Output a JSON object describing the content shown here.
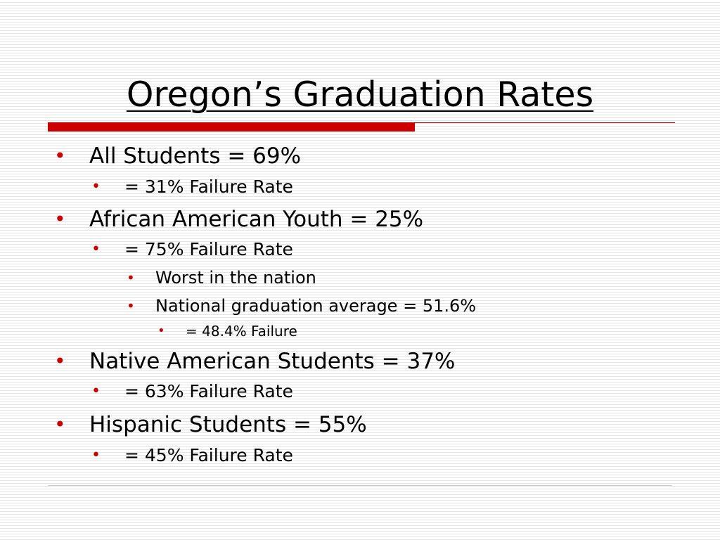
{
  "title": "Oregon’s Graduation Rates",
  "colors": {
    "accent": "#cc0000",
    "rule": "#cccccc",
    "text": "#000000",
    "stripe": "#e3e3e3"
  },
  "bullet_glyph": "•",
  "items": [
    {
      "level": 1,
      "text": "All Students = 69%"
    },
    {
      "level": 2,
      "text": "= 31% Failure Rate"
    },
    {
      "level": 1,
      "text": "African American Youth = 25%"
    },
    {
      "level": 2,
      "text": "= 75% Failure Rate"
    },
    {
      "level": 3,
      "text": "Worst in the nation"
    },
    {
      "level": 3,
      "text": "National graduation average = 51.6%"
    },
    {
      "level": 4,
      "text": "= 48.4% Failure"
    },
    {
      "level": 1,
      "text": "Native American Students = 37%"
    },
    {
      "level": 2,
      "text": "= 63% Failure Rate"
    },
    {
      "level": 1,
      "text": "Hispanic Students = 55%"
    },
    {
      "level": 2,
      "text": "= 45% Failure Rate"
    }
  ]
}
